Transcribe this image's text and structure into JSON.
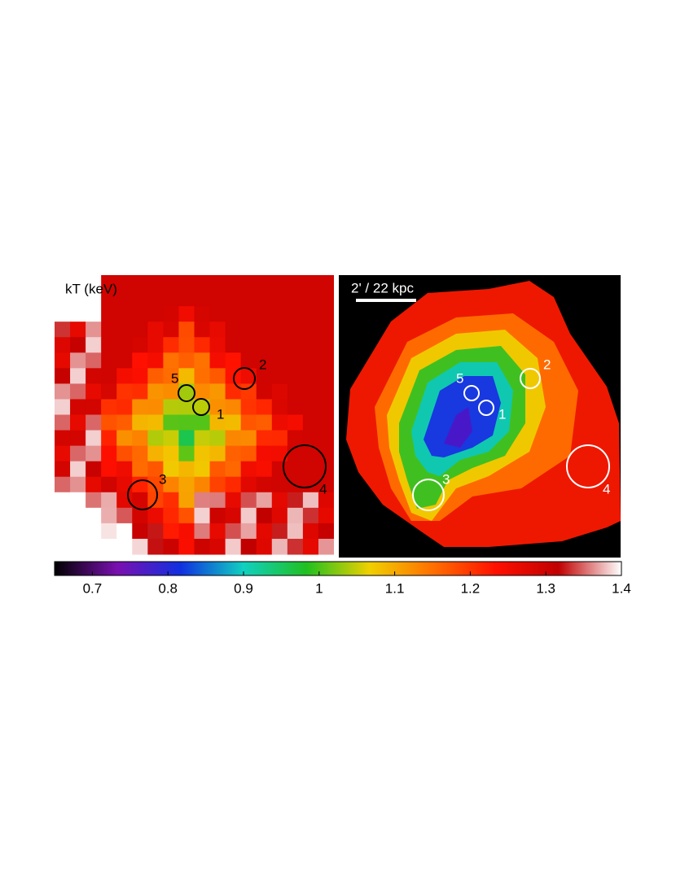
{
  "panels": [
    {
      "label": "kT (keV)",
      "regions": [
        "1",
        "2",
        "3",
        "4",
        "5"
      ]
    },
    {
      "scale_bar": "2' / 22 kpc",
      "regions": [
        "1",
        "2",
        "3",
        "4",
        "5"
      ]
    }
  ],
  "colorbar": {
    "lim": [
      0.65,
      1.4
    ],
    "ticks": [
      0.7,
      0.8,
      0.9,
      1,
      1.1,
      1.2,
      1.3,
      1.4
    ],
    "colors": [
      "#000000",
      "#7a10b0",
      "#1030e0",
      "#10d0c0",
      "#20c020",
      "#f0d000",
      "#ff7000",
      "#ff1000",
      "#c00000",
      "#ffffff"
    ]
  }
}
